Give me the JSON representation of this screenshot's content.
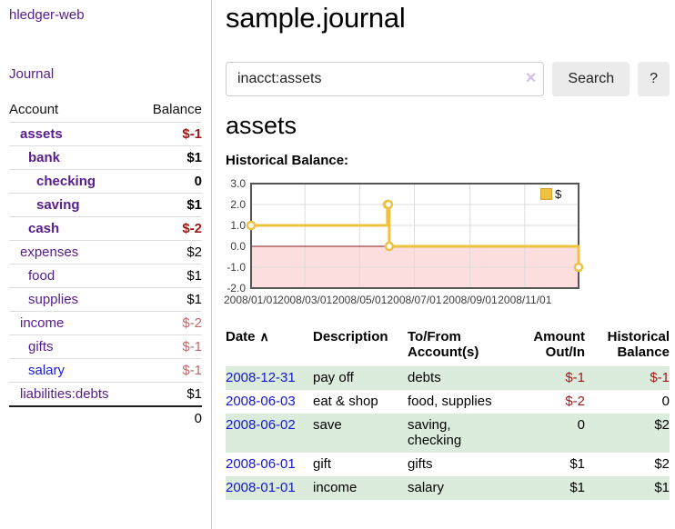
{
  "app": {
    "brand": "hledger-web"
  },
  "sidebar": {
    "nav": {
      "journal_label": "Journal"
    },
    "table": {
      "headers": [
        "Account",
        "Balance"
      ],
      "rows": [
        {
          "account": "assets",
          "balance": "$-1",
          "depth": 0,
          "bold": true
        },
        {
          "account": "bank",
          "balance": "$1",
          "depth": 1,
          "bold": true
        },
        {
          "account": "checking",
          "balance": "0",
          "depth": 2,
          "bold": true
        },
        {
          "account": "saving",
          "balance": "$1",
          "depth": 2,
          "bold": true
        },
        {
          "account": "cash",
          "balance": "$-2",
          "depth": 1,
          "bold": true
        },
        {
          "account": "expenses",
          "balance": "$2",
          "depth": 0,
          "bold": false
        },
        {
          "account": "food",
          "balance": "$1",
          "depth": 1,
          "bold": false
        },
        {
          "account": "supplies",
          "balance": "$1",
          "depth": 1,
          "bold": false
        },
        {
          "account": "income",
          "balance": "$-2",
          "depth": 0,
          "bold": false
        },
        {
          "account": "gifts",
          "balance": "$-1",
          "depth": 1,
          "bold": false
        },
        {
          "account": "salary",
          "balance": "$-1",
          "depth": 1,
          "bold": false,
          "unvisited": true
        },
        {
          "account": "liabilities:debts",
          "balance": "$1",
          "depth": 0,
          "bold": false
        }
      ],
      "total": "0"
    }
  },
  "header": {
    "title": "sample.journal"
  },
  "search": {
    "value": "inacct:assets",
    "clear_icon": "×",
    "button_label": "Search",
    "help_label": "?"
  },
  "account_page": {
    "heading": "assets",
    "chart_label": "Historical Balance:"
  },
  "chart_data": {
    "type": "line",
    "step": true,
    "title": "Historical Balance",
    "series": [
      {
        "name": "$",
        "color": "#edc240",
        "points": [
          [
            "2008-01-01",
            1
          ],
          [
            "2008-06-01",
            2
          ],
          [
            "2008-06-02",
            2
          ],
          [
            "2008-06-03",
            0
          ],
          [
            "2008-12-31",
            -1
          ]
        ]
      }
    ],
    "x_ticks": [
      "2008/01/01",
      "2008/03/01",
      "2008/05/01",
      "2008/07/01",
      "2008/09/01",
      "2008/11/01"
    ],
    "y_ticks": [
      3.0,
      2.0,
      1.0,
      0.0,
      -1.0,
      -2.0
    ],
    "ylim": [
      -2,
      3
    ],
    "grid": true,
    "legend": {
      "label": "$",
      "position": "top-right"
    },
    "negative_band_fill": "#fcdede",
    "zero_line_color": "#8b1a1a",
    "grid_color": "#dcdcdc",
    "border_color": "#545454"
  },
  "register": {
    "columns": [
      {
        "label": "Date",
        "sort_icon": "∧",
        "align": "left"
      },
      {
        "label": "Description",
        "align": "left"
      },
      {
        "label": "To/From Account(s)",
        "align": "left"
      },
      {
        "label": "Amount Out/In",
        "align": "right"
      },
      {
        "label": "Historical Balance",
        "align": "right"
      }
    ],
    "rows": [
      {
        "date": "2008-12-31",
        "description": "pay off",
        "accounts": "debts",
        "amount": "$-1",
        "balance": "$-1"
      },
      {
        "date": "2008-06-03",
        "description": "eat & shop",
        "accounts": "food, supplies",
        "amount": "$-2",
        "balance": "0"
      },
      {
        "date": "2008-06-02",
        "description": "save",
        "accounts": "saving, checking",
        "amount": "0",
        "balance": "$2"
      },
      {
        "date": "2008-06-01",
        "description": "gift",
        "accounts": "gifts",
        "amount": "$1",
        "balance": "$2"
      },
      {
        "date": "2008-01-01",
        "description": "income",
        "accounts": "salary",
        "amount": "$1",
        "balance": "$1"
      }
    ]
  },
  "colors": {
    "link_purple": "#571c8d",
    "link_blue": "#1515d6",
    "negative_strong": "#9c1818",
    "negative_soft": "#c0686c",
    "row_stripe_green": "#dcecdc",
    "series_yellow": "#edc240"
  }
}
